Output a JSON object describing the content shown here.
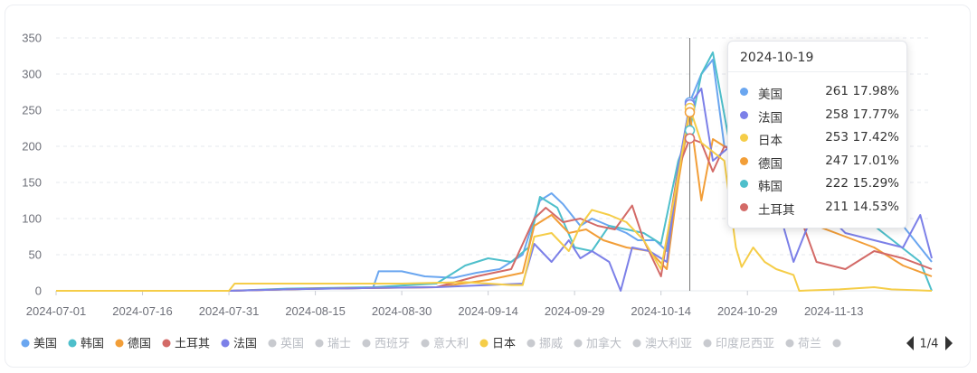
{
  "colors": {
    "美国": "#6aa6f0",
    "韩国": "#4ebfcb",
    "德国": "#f29e38",
    "土耳其": "#d36a67",
    "法国": "#7c80e8",
    "日本": "#f5cd48",
    "inactive": "#c8cacf"
  },
  "chart_data": {
    "type": "line",
    "ylim": [
      0,
      350
    ],
    "y_ticks": [
      "0",
      "50",
      "100",
      "150",
      "200",
      "250",
      "300",
      "350"
    ],
    "x_ticks": [
      "2024-07-01",
      "2024-07-16",
      "2024-07-31",
      "2024-08-15",
      "2024-08-30",
      "2024-09-14",
      "2024-09-29",
      "2024-10-14",
      "2024-10-29",
      "2024-11-13"
    ],
    "x_range": [
      "2024-07-01",
      "2024-11-30"
    ],
    "grid": "horizontal-dashed",
    "legend_position": "bottom",
    "cursor_date": "2024-10-19",
    "series": [
      {
        "name": "美国",
        "points": [
          [
            "2024-07-01",
            0
          ],
          [
            "2024-07-31",
            0
          ],
          [
            "2024-08-10",
            2
          ],
          [
            "2024-08-25",
            4
          ],
          [
            "2024-08-26",
            27
          ],
          [
            "2024-08-30",
            27
          ],
          [
            "2024-09-03",
            20
          ],
          [
            "2024-09-08",
            18
          ],
          [
            "2024-09-12",
            25
          ],
          [
            "2024-09-16",
            30
          ],
          [
            "2024-09-20",
            50
          ],
          [
            "2024-09-23",
            125
          ],
          [
            "2024-09-25",
            135
          ],
          [
            "2024-09-27",
            120
          ],
          [
            "2024-09-30",
            90
          ],
          [
            "2024-10-02",
            100
          ],
          [
            "2024-10-05",
            90
          ],
          [
            "2024-10-08",
            80
          ],
          [
            "2024-10-10",
            70
          ],
          [
            "2024-10-13",
            70
          ],
          [
            "2024-10-15",
            55
          ],
          [
            "2024-10-17",
            160
          ],
          [
            "2024-10-19",
            261
          ],
          [
            "2024-10-21",
            300
          ],
          [
            "2024-10-23",
            320
          ],
          [
            "2024-10-25",
            200
          ],
          [
            "2024-11-01",
            190
          ],
          [
            "2024-11-05",
            150
          ],
          [
            "2024-11-10",
            120
          ],
          [
            "2024-11-15",
            110
          ],
          [
            "2024-11-20",
            100
          ],
          [
            "2024-11-25",
            90
          ],
          [
            "2024-11-30",
            40
          ]
        ]
      },
      {
        "name": "韩国",
        "points": [
          [
            "2024-07-01",
            0
          ],
          [
            "2024-07-31",
            0
          ],
          [
            "2024-08-10",
            3
          ],
          [
            "2024-08-25",
            5
          ],
          [
            "2024-09-05",
            10
          ],
          [
            "2024-09-10",
            35
          ],
          [
            "2024-09-14",
            45
          ],
          [
            "2024-09-18",
            40
          ],
          [
            "2024-09-21",
            60
          ],
          [
            "2024-09-23",
            130
          ],
          [
            "2024-09-26",
            115
          ],
          [
            "2024-09-29",
            60
          ],
          [
            "2024-10-02",
            55
          ],
          [
            "2024-10-05",
            90
          ],
          [
            "2024-10-08",
            85
          ],
          [
            "2024-10-11",
            80
          ],
          [
            "2024-10-14",
            65
          ],
          [
            "2024-10-17",
            180
          ],
          [
            "2024-10-19",
            222
          ],
          [
            "2024-10-21",
            300
          ],
          [
            "2024-10-23",
            330
          ],
          [
            "2024-10-26",
            200
          ],
          [
            "2024-11-01",
            150
          ],
          [
            "2024-11-10",
            110
          ],
          [
            "2024-11-20",
            90
          ],
          [
            "2024-11-28",
            40
          ],
          [
            "2024-11-30",
            0
          ]
        ]
      },
      {
        "name": "德国",
        "points": [
          [
            "2024-07-01",
            0
          ],
          [
            "2024-07-31",
            0
          ],
          [
            "2024-08-15",
            3
          ],
          [
            "2024-09-05",
            5
          ],
          [
            "2024-09-14",
            15
          ],
          [
            "2024-09-20",
            25
          ],
          [
            "2024-09-22",
            90
          ],
          [
            "2024-09-25",
            105
          ],
          [
            "2024-09-28",
            80
          ],
          [
            "2024-10-01",
            85
          ],
          [
            "2024-10-04",
            70
          ],
          [
            "2024-10-08",
            60
          ],
          [
            "2024-10-12",
            55
          ],
          [
            "2024-10-15",
            30
          ],
          [
            "2024-10-17",
            150
          ],
          [
            "2024-10-19",
            247
          ],
          [
            "2024-10-21",
            125
          ],
          [
            "2024-10-23",
            210
          ],
          [
            "2024-10-25",
            200
          ],
          [
            "2024-11-01",
            170
          ],
          [
            "2024-11-05",
            120
          ],
          [
            "2024-11-10",
            90
          ],
          [
            "2024-11-15",
            75
          ],
          [
            "2024-11-20",
            60
          ],
          [
            "2024-11-25",
            35
          ],
          [
            "2024-11-30",
            20
          ]
        ]
      },
      {
        "name": "土耳其",
        "points": [
          [
            "2024-07-01",
            0
          ],
          [
            "2024-07-31",
            0
          ],
          [
            "2024-08-15",
            3
          ],
          [
            "2024-09-05",
            5
          ],
          [
            "2024-09-12",
            20
          ],
          [
            "2024-09-18",
            30
          ],
          [
            "2024-09-22",
            100
          ],
          [
            "2024-09-24",
            115
          ],
          [
            "2024-09-27",
            95
          ],
          [
            "2024-09-30",
            100
          ],
          [
            "2024-10-03",
            90
          ],
          [
            "2024-10-06",
            85
          ],
          [
            "2024-10-09",
            118
          ],
          [
            "2024-10-11",
            70
          ],
          [
            "2024-10-14",
            20
          ],
          [
            "2024-10-17",
            170
          ],
          [
            "2024-10-19",
            211
          ],
          [
            "2024-10-21",
            205
          ],
          [
            "2024-10-23",
            165
          ],
          [
            "2024-10-25",
            200
          ],
          [
            "2024-11-05",
            150
          ],
          [
            "2024-11-10",
            40
          ],
          [
            "2024-11-15",
            30
          ],
          [
            "2024-11-20",
            55
          ],
          [
            "2024-11-25",
            45
          ],
          [
            "2024-11-30",
            30
          ]
        ]
      },
      {
        "name": "法国",
        "points": [
          [
            "2024-07-01",
            0
          ],
          [
            "2024-07-31",
            0
          ],
          [
            "2024-08-10",
            2
          ],
          [
            "2024-08-25",
            4
          ],
          [
            "2024-09-05",
            5
          ],
          [
            "2024-09-14",
            8
          ],
          [
            "2024-09-20",
            10
          ],
          [
            "2024-09-22",
            65
          ],
          [
            "2024-09-25",
            40
          ],
          [
            "2024-09-28",
            70
          ],
          [
            "2024-09-30",
            45
          ],
          [
            "2024-10-02",
            55
          ],
          [
            "2024-10-05",
            40
          ],
          [
            "2024-10-07",
            0
          ],
          [
            "2024-10-09",
            60
          ],
          [
            "2024-10-12",
            55
          ],
          [
            "2024-10-15",
            40
          ],
          [
            "2024-10-17",
            170
          ],
          [
            "2024-10-19",
            258
          ],
          [
            "2024-10-21",
            280
          ],
          [
            "2024-10-23",
            180
          ],
          [
            "2024-10-26",
            200
          ],
          [
            "2024-11-01",
            180
          ],
          [
            "2024-11-06",
            40
          ],
          [
            "2024-11-10",
            120
          ],
          [
            "2024-11-15",
            80
          ],
          [
            "2024-11-20",
            70
          ],
          [
            "2024-11-25",
            60
          ],
          [
            "2024-11-28",
            105
          ],
          [
            "2024-11-30",
            45
          ]
        ]
      },
      {
        "name": "日本",
        "points": [
          [
            "2024-07-01",
            0
          ],
          [
            "2024-07-31",
            0
          ],
          [
            "2024-08-01",
            10
          ],
          [
            "2024-08-30",
            10
          ],
          [
            "2024-09-10",
            12
          ],
          [
            "2024-09-18",
            8
          ],
          [
            "2024-09-20",
            8
          ],
          [
            "2024-09-22",
            75
          ],
          [
            "2024-09-25",
            80
          ],
          [
            "2024-09-28",
            55
          ],
          [
            "2024-09-30",
            90
          ],
          [
            "2024-10-02",
            112
          ],
          [
            "2024-10-05",
            105
          ],
          [
            "2024-10-08",
            95
          ],
          [
            "2024-10-11",
            70
          ],
          [
            "2024-10-14",
            30
          ],
          [
            "2024-10-17",
            160
          ],
          [
            "2024-10-19",
            253
          ],
          [
            "2024-10-21",
            205
          ],
          [
            "2024-10-25",
            180
          ],
          [
            "2024-10-27",
            60
          ],
          [
            "2024-10-28",
            33
          ],
          [
            "2024-10-30",
            60
          ],
          [
            "2024-11-01",
            40
          ],
          [
            "2024-11-03",
            30
          ],
          [
            "2024-11-06",
            22
          ],
          [
            "2024-11-07",
            0
          ],
          [
            "2024-11-14",
            2
          ],
          [
            "2024-11-20",
            5
          ],
          [
            "2024-11-23",
            2
          ],
          [
            "2024-11-30",
            0
          ]
        ]
      }
    ]
  },
  "legend": {
    "items": [
      {
        "label": "美国",
        "active": true
      },
      {
        "label": "韩国",
        "active": true
      },
      {
        "label": "德国",
        "active": true
      },
      {
        "label": "土耳其",
        "active": true
      },
      {
        "label": "法国",
        "active": true
      },
      {
        "label": "英国",
        "active": false
      },
      {
        "label": "瑞士",
        "active": false
      },
      {
        "label": "西班牙",
        "active": false
      },
      {
        "label": "意大利",
        "active": false
      },
      {
        "label": "日本",
        "active": true
      },
      {
        "label": "挪威",
        "active": false
      },
      {
        "label": "加拿大",
        "active": false
      },
      {
        "label": "澳大利亚",
        "active": false
      },
      {
        "label": "印度尼西亚",
        "active": false
      },
      {
        "label": "荷兰",
        "active": false
      },
      {
        "label": "",
        "active": false
      }
    ],
    "page": "1/4"
  },
  "tooltip": {
    "date": "2024-10-19",
    "rows": [
      {
        "name": "美国",
        "value": "261",
        "pct": "17.98%"
      },
      {
        "name": "法国",
        "value": "258",
        "pct": "17.77%"
      },
      {
        "name": "日本",
        "value": "253",
        "pct": "17.42%"
      },
      {
        "name": "德国",
        "value": "247",
        "pct": "17.01%"
      },
      {
        "name": "韩国",
        "value": "222",
        "pct": "15.29%"
      },
      {
        "name": "土耳其",
        "value": "211",
        "pct": "14.53%"
      }
    ]
  }
}
